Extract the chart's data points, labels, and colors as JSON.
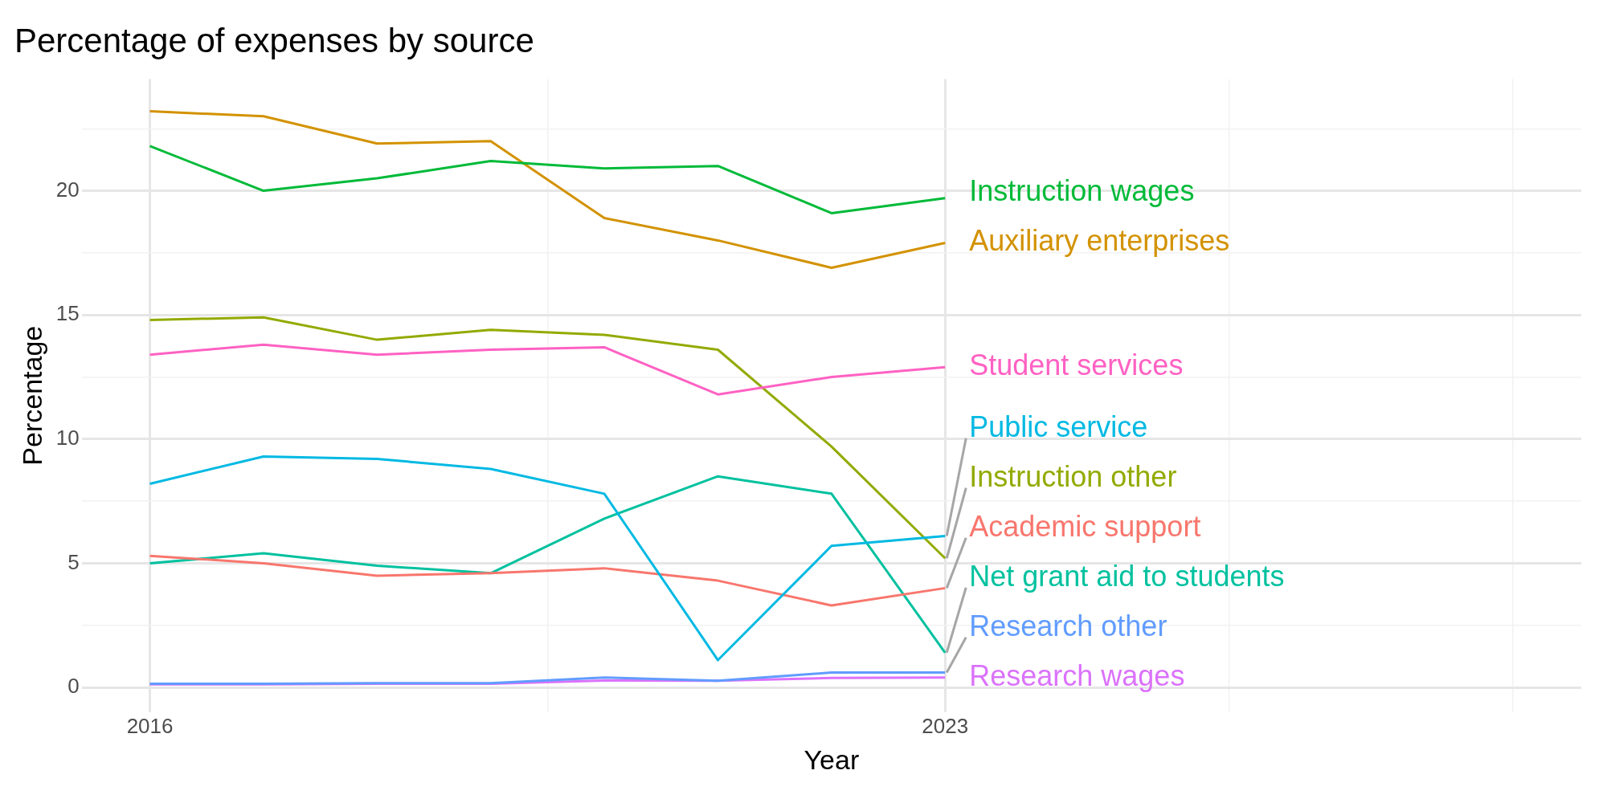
{
  "chart_data": {
    "type": "line",
    "title": "Percentage of expenses by source",
    "xlabel": "Year",
    "ylabel": "Percentage",
    "x": [
      2016,
      2017,
      2018,
      2019,
      2020,
      2021,
      2022,
      2023
    ],
    "series": [
      {
        "name": "Instruction wages",
        "color": "#00ba38",
        "values": [
          21.8,
          20.0,
          20.5,
          21.2,
          20.9,
          21.0,
          19.1,
          19.7
        ]
      },
      {
        "name": "Auxiliary enterprises",
        "color": "#d39200",
        "values": [
          23.2,
          23.0,
          21.9,
          22.0,
          18.9,
          18.0,
          16.9,
          17.9
        ]
      },
      {
        "name": "Student services",
        "color": "#ff61c3",
        "values": [
          13.4,
          13.8,
          13.4,
          13.6,
          13.7,
          11.8,
          12.5,
          12.9
        ]
      },
      {
        "name": "Public service",
        "color": "#00b9e3",
        "values": [
          8.2,
          9.3,
          9.2,
          8.8,
          7.8,
          1.1,
          5.7,
          6.1
        ]
      },
      {
        "name": "Instruction other",
        "color": "#93aa00",
        "values": [
          14.8,
          14.9,
          14.0,
          14.4,
          14.2,
          13.6,
          9.7,
          5.2
        ]
      },
      {
        "name": "Academic support",
        "color": "#f8766d",
        "values": [
          5.3,
          5.0,
          4.5,
          4.6,
          4.8,
          4.3,
          3.3,
          4.0
        ]
      },
      {
        "name": "Net grant aid to students",
        "color": "#00c19f",
        "values": [
          5.0,
          5.4,
          4.9,
          4.6,
          6.8,
          8.5,
          7.8,
          1.4
        ]
      },
      {
        "name": "Research other",
        "color": "#619cff",
        "values": [
          0.15,
          0.15,
          0.17,
          0.17,
          0.4,
          0.27,
          0.6,
          0.6
        ]
      },
      {
        "name": "Research wages",
        "color": "#db72fb",
        "values": [
          0.12,
          0.12,
          0.15,
          0.15,
          0.28,
          0.27,
          0.38,
          0.4
        ]
      }
    ],
    "xlim": [
      2015.4,
      2028.6
    ],
    "xticks": [
      2016,
      {
        "value": 2019.5,
        "label": null
      },
      2023,
      {
        "value": 2025.5,
        "label": null
      },
      {
        "value": 2028,
        "label": null
      }
    ],
    "ylim": [
      -1,
      24.5
    ],
    "yticks": [
      0,
      {
        "value": 2.5,
        "label": null
      },
      5,
      {
        "value": 7.5,
        "label": null
      },
      10,
      {
        "value": 12.5,
        "label": null
      },
      15,
      {
        "value": 17.5,
        "label": null
      },
      20,
      {
        "value": 22.5,
        "label": null
      }
    ],
    "grid": true,
    "legend": false
  }
}
